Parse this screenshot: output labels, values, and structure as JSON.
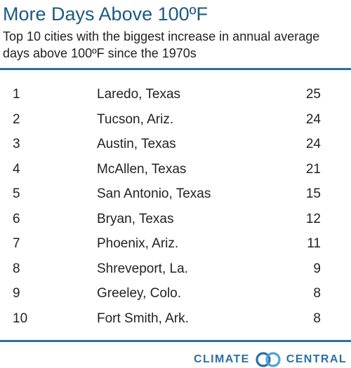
{
  "header": {
    "title": "More Days Above 100ºF",
    "subtitle": "Top 10 cities with the biggest increase in annual average days above 100ºF since the 1970s"
  },
  "chart_data": {
    "type": "table",
    "title": "More Days Above 100ºF",
    "subtitle": "Top 10 cities with the biggest increase in annual average days above 100ºF since the 1970s",
    "columns": [
      "rank",
      "city",
      "days"
    ],
    "rows": [
      {
        "rank": "1",
        "city": "Laredo, Texas",
        "days": 25
      },
      {
        "rank": "2",
        "city": "Tucson, Ariz.",
        "days": 24
      },
      {
        "rank": "3",
        "city": "Austin, Texas",
        "days": 24
      },
      {
        "rank": "4",
        "city": "McAllen, Texas",
        "days": 21
      },
      {
        "rank": "5",
        "city": "San Antonio, Texas",
        "days": 15
      },
      {
        "rank": "6",
        "city": "Bryan, Texas",
        "days": 12
      },
      {
        "rank": "7",
        "city": "Phoenix, Ariz.",
        "days": 11
      },
      {
        "rank": "8",
        "city": "Shreveport, La.",
        "days": 9
      },
      {
        "rank": "9",
        "city": "Greeley, Colo.",
        "days": 8
      },
      {
        "rank": "10",
        "city": "Fort Smith, Ark.",
        "days": 8
      }
    ]
  },
  "footer": {
    "brand_left": "CLIMATE",
    "brand_right": "CENTRAL",
    "logo_icon": "climate-central-logo-icon"
  },
  "colors": {
    "title": "#1b5a82",
    "rule": "#2a6fa3",
    "brand": "#2a6fa3",
    "text": "#222222"
  }
}
